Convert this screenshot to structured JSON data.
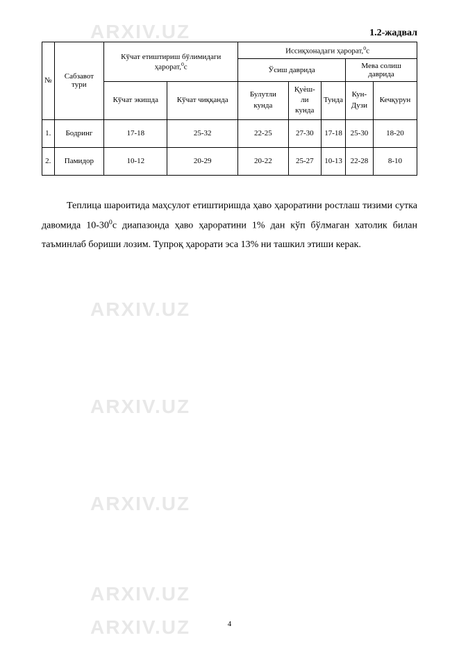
{
  "watermark_text": "ARXIV.UZ",
  "table_title": "1.2-жадвал",
  "headers": {
    "num": "№",
    "type": "Сабзавот тури",
    "transplant": "Кўчат етиштириш бўлимидаги ҳарорат,",
    "transplant_unit": "0",
    "transplant_unit2": "с",
    "greenhouse": "Иссиқхонадаги ҳарорат,",
    "greenhouse_unit": "0",
    "greenhouse_unit2": "с",
    "growth_period": "Ўсиш даврида",
    "fruit_period": "Мева солиш даврида",
    "sub_planting": "Кўчат экишда",
    "sub_emergence": "Кўчат чиққанда",
    "sub_cloudy": "Булутли кунда",
    "sub_sunny_1": "Қуѐш-",
    "sub_sunny_2": "ли кунда",
    "sub_night": "Тунда",
    "sub_day_1": "Кун-",
    "sub_day_2": "Дузи",
    "sub_evening": "Кечқурун"
  },
  "rows": [
    {
      "num": "1.",
      "name": "Бодринг",
      "v1": "17-18",
      "v2": "25-32",
      "v3": "22-25",
      "v4": "27-30",
      "v5": "17-18",
      "v6": "25-30",
      "v7": "18-20"
    },
    {
      "num": "2.",
      "name": "Памидор",
      "v1": "10-12",
      "v2": "20-29",
      "v3": "20-22",
      "v4": "25-27",
      "v5": "10-13",
      "v6": "22-28",
      "v7": "8-10"
    }
  ],
  "paragraph_parts": {
    "p1": "Теплица шароитида маҳсулот етиштиришда ҳаво ҳароратини ростлаш тизими сутка давомида 10-30",
    "p1_sup": "0",
    "p2": "с диапазонда ҳаво ҳароратини 1% дан кўп бўлмаган хатолик билан таъминлаб бориши лозим. Тупроқ ҳарорати эса 13% ни ташкил этиши керак."
  },
  "page_number": "4"
}
